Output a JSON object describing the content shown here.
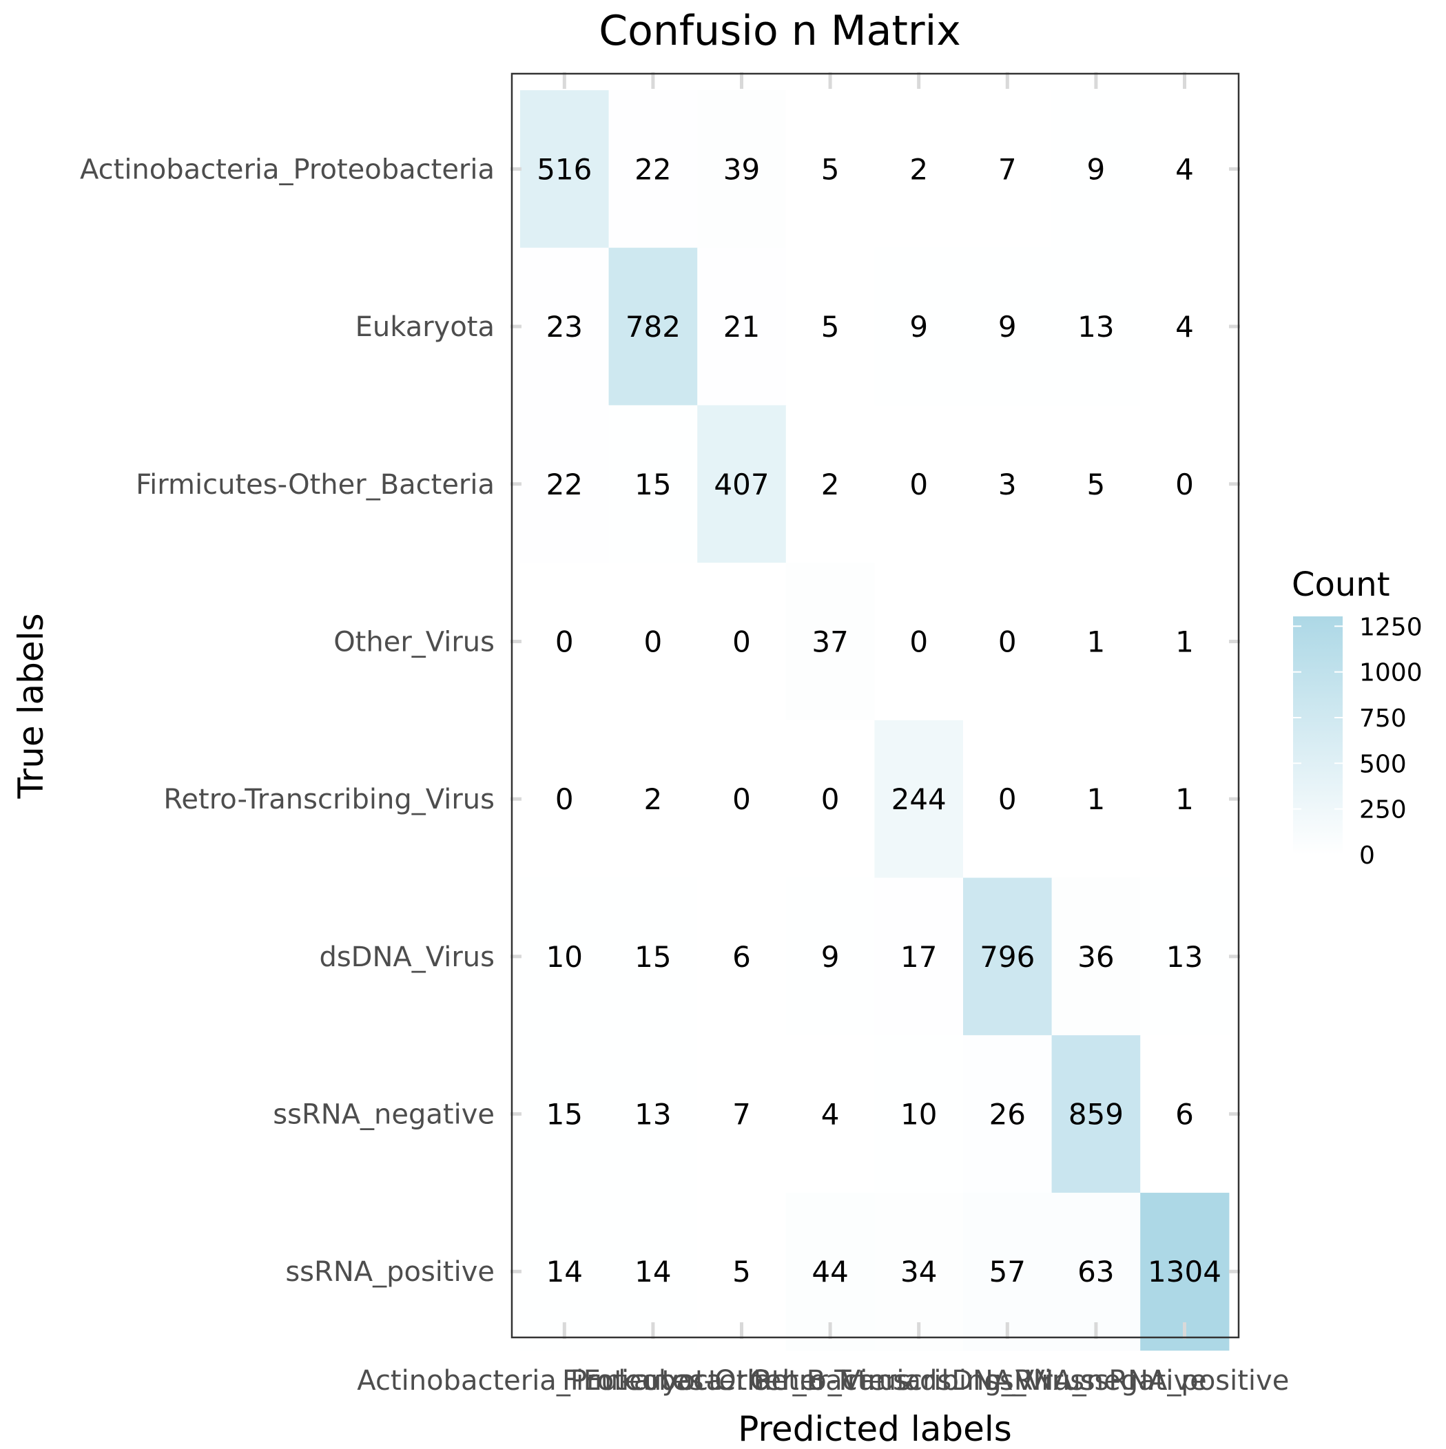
{
  "chart_data": {
    "type": "heatmap",
    "title": "Confusio  n Matrix",
    "xlabel": "Predicted labels",
    "ylabel": "True labels",
    "x_categories": [
      "Actinobacteria_Proteobacteria",
      "Eukaryota",
      "Firmicutes-Other_Bacteria",
      "Other_Virus",
      "Retro-Transcribing_Virus",
      "dsDNA_Virus",
      "ssRNA_negative",
      "ssRNA_positive"
    ],
    "y_categories": [
      "Actinobacteria_Proteobacteria",
      "Eukaryota",
      "Firmicutes-Other_Bacteria",
      "Other_Virus",
      "Retro-Transcribing_Virus",
      "dsDNA_Virus",
      "ssRNA_negative",
      "ssRNA_positive"
    ],
    "values": [
      [
        516,
        22,
        39,
        5,
        2,
        7,
        9,
        4
      ],
      [
        23,
        782,
        21,
        5,
        9,
        9,
        13,
        4
      ],
      [
        22,
        15,
        407,
        2,
        0,
        3,
        5,
        0
      ],
      [
        0,
        0,
        0,
        37,
        0,
        0,
        1,
        1
      ],
      [
        0,
        2,
        0,
        0,
        244,
        0,
        1,
        1
      ],
      [
        10,
        15,
        6,
        9,
        17,
        796,
        36,
        13
      ],
      [
        15,
        13,
        7,
        4,
        10,
        26,
        859,
        6
      ],
      [
        14,
        14,
        5,
        44,
        34,
        57,
        63,
        1304
      ]
    ],
    "color_low": "#ffffff",
    "color_high": "#add8e6",
    "legend": {
      "title": "Count",
      "ticks": [
        0,
        250,
        500,
        750,
        1000,
        1250
      ],
      "range": [
        0,
        1304
      ],
      "placement": "right"
    },
    "grid": false
  }
}
